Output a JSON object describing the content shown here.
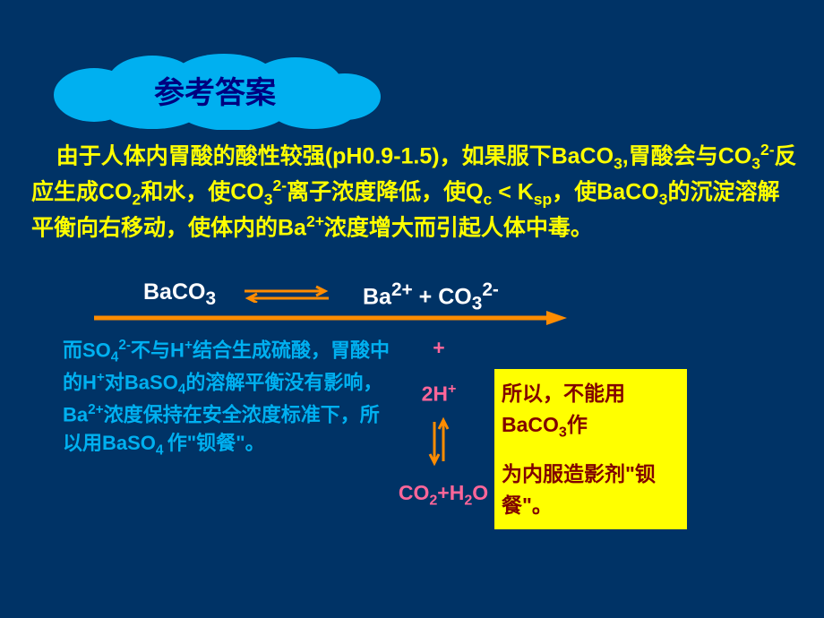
{
  "colors": {
    "page_bg": "#003366",
    "cloud_fill": "#00b0f0",
    "title_color": "#000080",
    "yellow_text": "#ffff00",
    "white_text": "#ffffff",
    "orange_arrow": "#ff8c00",
    "blue_text": "#00b0f0",
    "pink_text": "#ff6699",
    "yellow_box_bg": "#ffff00",
    "brown_text": "#800000"
  },
  "banner": {
    "title": "参考答案"
  },
  "main_paragraph": {
    "html": "&nbsp;&nbsp;&nbsp;&nbsp;由于人体内胃酸的酸性较强(pH0.9-1.5)，如果服下BaCO<sub>3</sub>,胃酸会与CO<sub>3</sub><sup>2-</sup>反应生成CO<sub>2</sub>和水，使CO<sub>3</sub><sup>2-</sup>离子浓度降低，使Q<sub>c</sub> &lt; K<sub>sp</sub>，使BaCO<sub>3</sub>的沉淀溶解平衡向右移动，使体内的Ba<sup>2+</sup>浓度增大而引起人体中毒。"
  },
  "equation": {
    "left_html": "BaCO<sub>3</sub>",
    "right_html": "Ba<sup>2+</sup> + CO<sub>3</sub><sup>2-</sup>",
    "arrow_color": "#ff8c00"
  },
  "big_arrow": {
    "color": "#ff8c00"
  },
  "blue_paragraph": {
    "html": "而SO<sub>4</sub><sup>2-</sup>不与H<sup>+</sup>结合生成硫酸，胃酸中的H<sup>+</sup>对BaSO<sub>4</sub>的溶解平衡没有影响，Ba<sup>2+</sup>浓度保持在安全浓度标准下，所以用BaSO<sub>4 </sub>作\"钡餐\"。"
  },
  "pink_column": {
    "plus": "+",
    "h_html": "2H<sup>+</sup>",
    "result_html": "CO<sub>2</sub>+H<sub>2</sub>O",
    "arrow_color": "#ff8c00"
  },
  "yellow_box": {
    "line1_html": "所以，不能用BaCO<sub>3</sub>作",
    "line2_html": "为内服造影剂\"钡餐\"。"
  }
}
